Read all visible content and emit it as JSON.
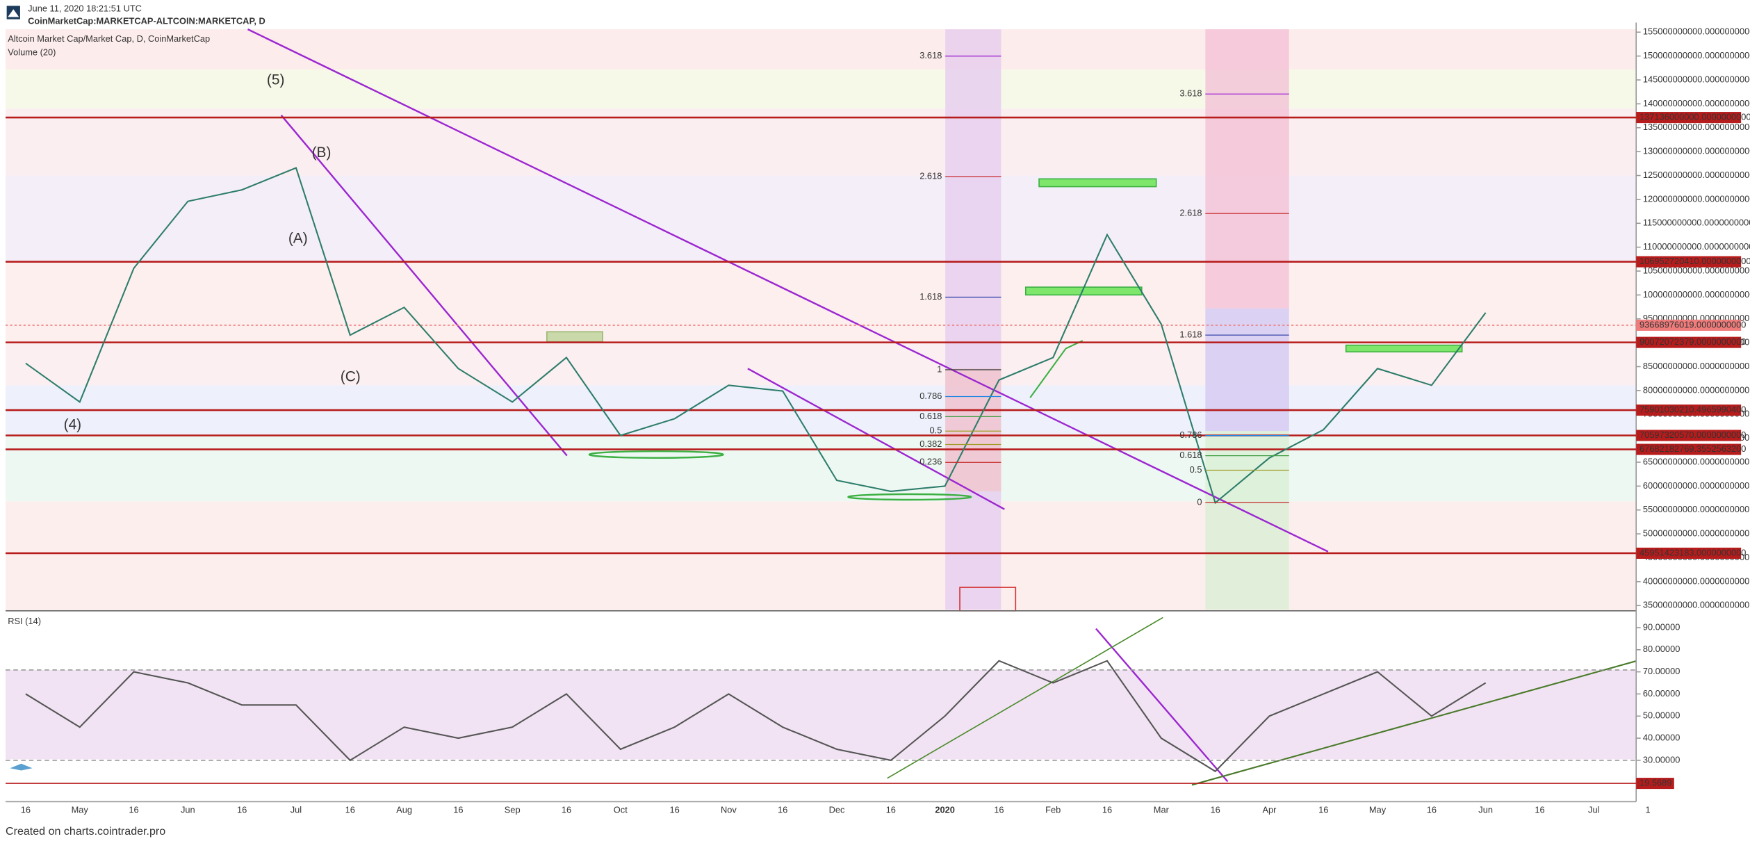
{
  "header": {
    "date": "June 11, 2020 18:21:51 UTC",
    "symbol": "CoinMarketCap:MARKETCAP-ALTCOIN:MARKETCAP, D"
  },
  "footer": "Created on charts.cointrader.pro",
  "chart_data": [
    {
      "type": "line",
      "title": "Altcoin Market Cap/Market Cap, D, CoinMarketCap",
      "subtitle": "Volume (20)",
      "color": "#2e7d6b",
      "categories": [
        "16",
        "May",
        "16",
        "Jun",
        "16",
        "Jul",
        "16",
        "Aug",
        "16",
        "Sep",
        "16",
        "Oct",
        "16",
        "Nov",
        "16",
        "Dec",
        "16",
        "2020",
        "16",
        "Feb",
        "16",
        "Mar",
        "16",
        "Apr",
        "16",
        "May",
        "16",
        "Jun",
        "16",
        "Jul",
        "1"
      ],
      "values": [
        85700000000,
        77600000000,
        105600000000,
        119600000000,
        122000000000,
        126600000000,
        91600000000,
        97400000000,
        84600000000,
        77600000000,
        86900000000,
        70600000000,
        74100000000,
        81100000000,
        79900000000,
        61200000000,
        58900000000,
        60000000000,
        82200000000,
        86900000000,
        112600000000,
        93900000000,
        56500000000,
        65900000000,
        71800000000,
        84600000000,
        81100000000,
        96300000000,
        null,
        null,
        null
      ],
      "ylim": [
        33900000000,
        155600000000
      ],
      "yticks": [
        {
          "value": 35000000000,
          "label": "35000000000.0000000000"
        },
        {
          "value": 40000000000,
          "label": "40000000000.0000000000"
        },
        {
          "value": 45000000000,
          "label": "45000000000.0000000000"
        },
        {
          "value": 50000000000,
          "label": "50000000000.0000000000"
        },
        {
          "value": 55000000000,
          "label": "55000000000.0000000000"
        },
        {
          "value": 60000000000,
          "label": "60000000000.0000000000"
        },
        {
          "value": 65000000000,
          "label": "65000000000.0000000000"
        },
        {
          "value": 70000000000,
          "label": "70000000000.0000000000"
        },
        {
          "value": 75000000000,
          "label": "75000000000.0000000000"
        },
        {
          "value": 80000000000,
          "label": "80000000000.0000000000"
        },
        {
          "value": 85000000000,
          "label": "85000000000.0000000000"
        },
        {
          "value": 90000000000,
          "label": "90000000000.0000000000"
        },
        {
          "value": 95000000000,
          "label": "95000000000.0000000000"
        },
        {
          "value": 100000000000,
          "label": "100000000000.0000000000"
        },
        {
          "value": 105000000000,
          "label": "105000000000.0000000000"
        },
        {
          "value": 110000000000,
          "label": "110000000000.0000000000"
        },
        {
          "value": 115000000000,
          "label": "115000000000.0000000000"
        },
        {
          "value": 120000000000,
          "label": "120000000000.0000000000"
        },
        {
          "value": 125000000000,
          "label": "125000000000.0000000000"
        },
        {
          "value": 130000000000,
          "label": "130000000000.0000000000"
        },
        {
          "value": 135000000000,
          "label": "135000000000.0000000000"
        },
        {
          "value": 140000000000,
          "label": "140000000000.0000000000"
        },
        {
          "value": 145000000000,
          "label": "145000000000.0000000000"
        },
        {
          "value": 150000000000,
          "label": "150000000000.0000000000"
        },
        {
          "value": 155000000000,
          "label": "155000000000.0000000000"
        }
      ],
      "levels": [
        {
          "value": 137136000000,
          "label": "137136000000.0000000000"
        },
        {
          "value": 106952720410,
          "label": "106952720410.0000000000"
        },
        {
          "value": 93668976019,
          "label": "93668976019.0000000000"
        },
        {
          "value": 90072072379,
          "label": "90072072379.0000000000"
        },
        {
          "value": 75901030210.4966,
          "label": "75901030210.4965990400"
        },
        {
          "value": 70597320570,
          "label": "70597320570.0000000000"
        },
        {
          "value": 67682182769.355255,
          "label": "67682182769.3552563200"
        },
        {
          "value": 45951423183,
          "label": "45951423183.0000000000"
        }
      ],
      "fib_left": [
        "3.618",
        "2.618",
        "1.618",
        "1",
        "0.786",
        "0.618",
        "0.5",
        "0.382",
        "0.236"
      ],
      "fib_right": [
        "3.618",
        "2.618",
        "1.618",
        "0.786",
        "0.618",
        "0.5",
        "0"
      ],
      "waves": [
        "(5)",
        "(B)",
        "(A)",
        "(C)",
        "(4)"
      ]
    },
    {
      "type": "line",
      "title": "RSI (14)",
      "color": "#555555",
      "values": [
        60,
        45,
        70,
        65,
        55,
        55,
        30,
        45,
        40,
        45,
        60,
        35,
        45,
        60,
        45,
        35,
        30,
        50,
        75,
        65,
        75,
        40,
        25,
        50,
        60,
        70,
        50,
        65,
        null,
        null,
        null
      ],
      "ylim": [
        11.8,
        97.1
      ],
      "yticks": [
        {
          "value": 30,
          "label": "30.00000"
        },
        {
          "value": 40,
          "label": "40.00000"
        },
        {
          "value": 50,
          "label": "50.00000"
        },
        {
          "value": 60,
          "label": "60.00000"
        },
        {
          "value": 70,
          "label": "70.00000"
        },
        {
          "value": 80,
          "label": "80.00000"
        },
        {
          "value": 90,
          "label": "90.00000"
        }
      ],
      "levels": [
        {
          "value": 19.5689,
          "label": "19.5689"
        }
      ]
    }
  ]
}
